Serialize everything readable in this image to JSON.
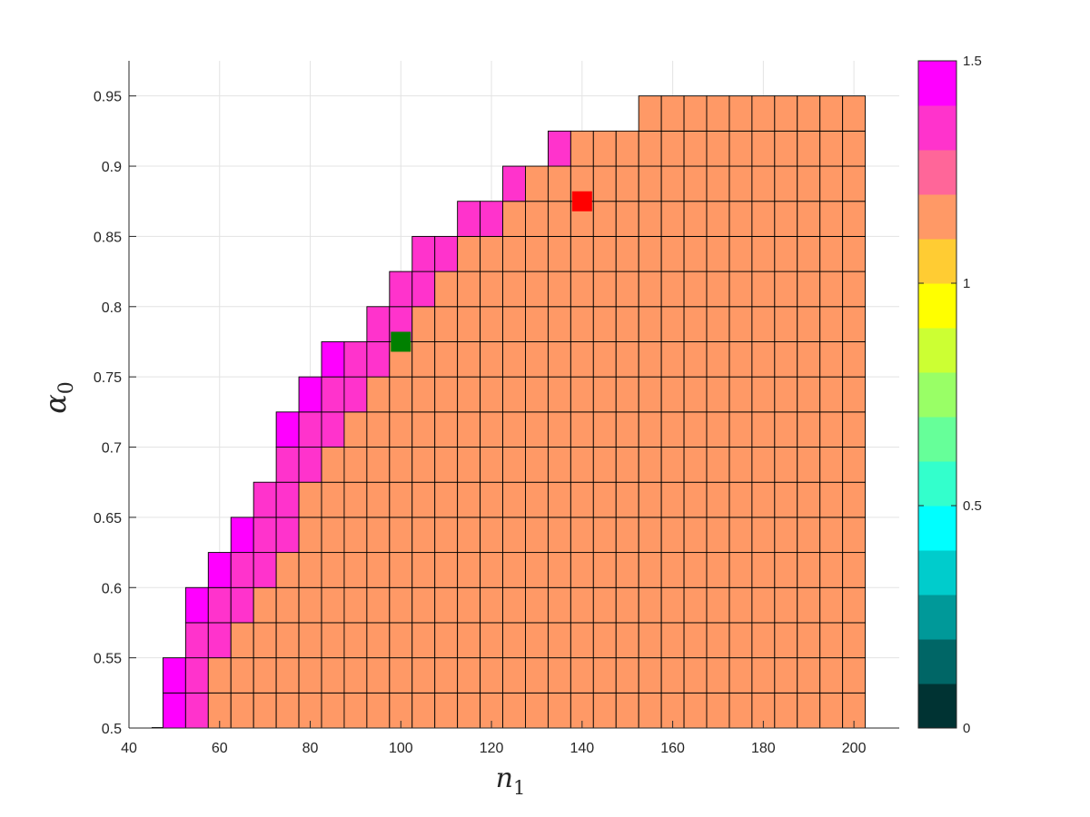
{
  "chart_data": {
    "type": "heatmap",
    "title": "",
    "xlabel": "n",
    "xlabel_sub": "1",
    "ylabel": "α",
    "ylabel_sub": "0",
    "xlim": [
      40,
      210
    ],
    "ylim": [
      0.5,
      0.975
    ],
    "xticks": [
      40,
      60,
      80,
      100,
      120,
      140,
      160,
      180,
      200
    ],
    "yticks": [
      0.5,
      0.55,
      0.6,
      0.65,
      0.7,
      0.75,
      0.8,
      0.85,
      0.9,
      0.95
    ],
    "xtick_labels": [
      "40",
      "60",
      "80",
      "100",
      "120",
      "140",
      "160",
      "180",
      "200"
    ],
    "ytick_labels": [
      "0.5",
      "0.55",
      "0.6",
      "0.65",
      "0.7",
      "0.75",
      "0.8",
      "0.85",
      "0.9",
      "0.95"
    ],
    "grid": true,
    "cell_width": 5,
    "cell_height": 0.025,
    "x_centers": [
      50,
      55,
      60,
      65,
      70,
      75,
      80,
      85,
      90,
      95,
      100,
      105,
      110,
      115,
      120,
      125,
      130,
      135,
      140,
      145,
      150,
      155,
      160,
      165,
      170,
      175,
      180,
      185,
      190,
      195,
      200
    ],
    "rows": [
      {
        "y": 0.5125,
        "values": [
          1.5,
          1.3,
          1.2,
          1.2,
          1.2,
          1.1,
          1.1,
          1.1,
          1.1,
          1.1,
          1.1,
          1.1,
          1.1,
          1.1,
          1.1,
          1.1,
          1.1,
          1.1,
          1.1,
          1.1,
          1.1,
          1.1,
          1.1,
          1.1,
          1.1,
          1.1,
          1.1,
          1.1,
          1.1,
          1.1,
          1.1
        ]
      },
      {
        "y": 0.5375,
        "values": [
          1.5,
          1.3,
          1.2,
          1.2,
          1.2,
          1.2,
          1.1,
          1.1,
          1.1,
          1.1,
          1.1,
          1.1,
          1.1,
          1.1,
          1.1,
          1.1,
          1.1,
          1.1,
          1.1,
          1.1,
          1.1,
          1.1,
          1.1,
          1.1,
          1.1,
          1.1,
          1.1,
          1.1,
          1.1,
          1.1,
          1.1
        ]
      },
      {
        "y": 0.5625,
        "values": [
          null,
          1.4,
          1.3,
          1.2,
          1.2,
          1.2,
          1.1,
          1.1,
          1.1,
          1.1,
          1.1,
          1.1,
          1.1,
          1.1,
          1.1,
          1.1,
          1.1,
          1.1,
          1.1,
          1.1,
          1.1,
          1.1,
          1.1,
          1.1,
          1.1,
          1.1,
          1.1,
          1.1,
          1.1,
          1.1,
          1.1
        ]
      },
      {
        "y": 0.5875,
        "values": [
          null,
          1.5,
          1.4,
          1.3,
          1.2,
          1.2,
          1.2,
          1.1,
          1.1,
          1.1,
          1.1,
          1.1,
          1.1,
          1.1,
          1.1,
          1.1,
          1.1,
          1.1,
          1.1,
          1.1,
          1.1,
          1.1,
          1.1,
          1.1,
          1.1,
          1.1,
          1.1,
          1.1,
          1.1,
          1.1,
          1.1
        ]
      },
      {
        "y": 0.6125,
        "values": [
          null,
          null,
          1.5,
          1.3,
          1.3,
          1.2,
          1.2,
          1.2,
          1.1,
          1.1,
          1.1,
          1.1,
          1.1,
          1.1,
          1.1,
          1.1,
          1.1,
          1.1,
          1.1,
          1.1,
          1.1,
          1.1,
          1.1,
          1.1,
          1.1,
          1.1,
          1.1,
          1.1,
          1.1,
          1.1,
          1.1
        ]
      },
      {
        "y": 0.6375,
        "values": [
          null,
          null,
          null,
          1.5,
          1.3,
          1.3,
          1.2,
          1.2,
          1.1,
          1.1,
          1.1,
          1.1,
          1.1,
          1.1,
          1.1,
          1.1,
          1.1,
          1.1,
          1.1,
          1.1,
          1.1,
          1.1,
          1.1,
          1.1,
          1.1,
          1.1,
          1.1,
          1.1,
          1.1,
          1.1,
          1.1
        ]
      },
      {
        "y": 0.6625,
        "values": [
          null,
          null,
          null,
          null,
          1.4,
          1.3,
          1.2,
          1.2,
          1.2,
          1.1,
          1.1,
          1.1,
          1.1,
          1.1,
          1.1,
          1.1,
          1.1,
          1.1,
          1.1,
          1.1,
          1.1,
          1.1,
          1.1,
          1.1,
          1.1,
          1.1,
          1.1,
          1.1,
          1.1,
          1.1,
          1.1
        ]
      },
      {
        "y": 0.6875,
        "values": [
          null,
          null,
          null,
          null,
          null,
          1.4,
          1.3,
          1.2,
          1.2,
          1.2,
          1.1,
          1.1,
          1.1,
          1.1,
          1.1,
          1.1,
          1.1,
          1.1,
          1.1,
          1.1,
          1.1,
          1.1,
          1.1,
          1.1,
          1.1,
          1.1,
          1.1,
          1.1,
          1.1,
          1.1,
          1.1
        ]
      },
      {
        "y": 0.7125,
        "values": [
          null,
          null,
          null,
          null,
          null,
          1.5,
          1.4,
          1.3,
          1.2,
          1.2,
          1.2,
          1.1,
          1.1,
          1.1,
          1.1,
          1.1,
          1.1,
          1.1,
          1.1,
          1.1,
          1.1,
          1.1,
          1.1,
          1.1,
          1.1,
          1.1,
          1.1,
          1.1,
          1.1,
          1.1,
          1.1
        ]
      },
      {
        "y": 0.7375,
        "values": [
          null,
          null,
          null,
          null,
          null,
          null,
          1.5,
          1.3,
          1.3,
          1.2,
          1.2,
          1.2,
          1.1,
          1.1,
          1.1,
          1.1,
          1.1,
          1.1,
          1.1,
          1.1,
          1.1,
          1.1,
          1.1,
          1.1,
          1.1,
          1.1,
          1.1,
          1.1,
          1.1,
          1.1,
          1.1
        ]
      },
      {
        "y": 0.7625,
        "values": [
          null,
          null,
          null,
          null,
          null,
          null,
          null,
          1.5,
          1.3,
          1.3,
          1.2,
          1.2,
          1.2,
          1.1,
          1.1,
          1.1,
          1.1,
          1.1,
          1.1,
          1.1,
          1.1,
          1.1,
          1.1,
          1.1,
          1.1,
          1.1,
          1.1,
          1.1,
          1.1,
          1.1,
          1.1
        ]
      },
      {
        "y": 0.7875,
        "values": [
          null,
          null,
          null,
          null,
          null,
          null,
          null,
          null,
          null,
          1.4,
          1.3,
          1.2,
          1.2,
          1.1,
          1.1,
          1.1,
          1.1,
          1.1,
          1.1,
          1.1,
          1.1,
          1.1,
          1.1,
          1.1,
          1.1,
          1.1,
          1.1,
          1.1,
          1.1,
          1.1,
          1.1
        ]
      },
      {
        "y": 0.8125,
        "values": [
          null,
          null,
          null,
          null,
          null,
          null,
          null,
          null,
          null,
          null,
          1.4,
          1.3,
          1.2,
          1.2,
          1.2,
          1.1,
          1.1,
          1.1,
          1.1,
          1.1,
          1.1,
          1.1,
          1.1,
          1.1,
          1.1,
          1.1,
          1.1,
          1.1,
          1.1,
          1.1,
          1.1
        ]
      },
      {
        "y": 0.8375,
        "values": [
          null,
          null,
          null,
          null,
          null,
          null,
          null,
          null,
          null,
          null,
          null,
          1.4,
          1.3,
          1.2,
          1.2,
          1.2,
          1.1,
          1.1,
          1.1,
          1.1,
          1.1,
          1.1,
          1.1,
          1.1,
          1.1,
          1.1,
          1.1,
          1.1,
          1.1,
          1.1,
          1.1
        ]
      },
      {
        "y": 0.8625,
        "values": [
          null,
          null,
          null,
          null,
          null,
          null,
          null,
          null,
          null,
          null,
          null,
          null,
          null,
          1.3,
          1.3,
          1.2,
          1.2,
          1.1,
          1.1,
          1.1,
          1.1,
          1.1,
          1.1,
          1.1,
          1.1,
          1.1,
          1.1,
          1.1,
          1.1,
          1.1,
          1.1
        ]
      },
      {
        "y": 0.8875,
        "values": [
          null,
          null,
          null,
          null,
          null,
          null,
          null,
          null,
          null,
          null,
          null,
          null,
          null,
          null,
          null,
          1.3,
          1.2,
          1.2,
          1.1,
          1.1,
          1.1,
          1.1,
          1.1,
          1.1,
          1.1,
          1.1,
          1.1,
          1.1,
          1.1,
          1.1,
          1.1
        ]
      },
      {
        "y": 0.9125,
        "values": [
          null,
          null,
          null,
          null,
          null,
          null,
          null,
          null,
          null,
          null,
          null,
          null,
          null,
          null,
          null,
          null,
          null,
          1.3,
          1.2,
          1.2,
          1.1,
          1.1,
          1.1,
          1.1,
          1.1,
          1.1,
          1.1,
          1.1,
          1.1,
          1.1,
          1.1
        ]
      },
      {
        "y": 0.9375,
        "values": [
          null,
          null,
          null,
          null,
          null,
          null,
          null,
          null,
          null,
          null,
          null,
          null,
          null,
          null,
          null,
          null,
          null,
          null,
          null,
          null,
          null,
          1.2,
          1.1,
          1.1,
          1.1,
          1.1,
          1.1,
          1.1,
          1.1,
          1.1,
          1.1
        ]
      }
    ],
    "markers": [
      {
        "x": 100,
        "y": 0.775,
        "color": "#008000",
        "shape": "square"
      },
      {
        "x": 140,
        "y": 0.875,
        "color": "#ff0000",
        "shape": "square"
      }
    ],
    "colorbar": {
      "limits": [
        0,
        1.5
      ],
      "ticks": [
        0,
        0.5,
        1,
        1.5
      ],
      "tick_labels": [
        "0",
        "0.5",
        "1",
        "1.5"
      ],
      "colors": [
        "#003333",
        "#006666",
        "#009999",
        "#00cccc",
        "#00ffff",
        "#33ffcc",
        "#66ff99",
        "#99ff66",
        "#ccff33",
        "#ffff00",
        "#ffcc33",
        "#ff9966",
        "#ff6699",
        "#ff33cc",
        "#ff00ff"
      ]
    }
  }
}
